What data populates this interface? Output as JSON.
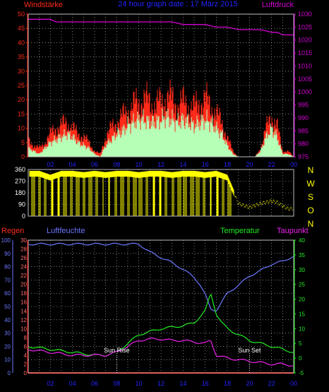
{
  "header": {
    "left_label": "Windstärke",
    "title": "24 hour graph date : 17 März 2015",
    "right_label": "Luftdruck"
  },
  "colors": {
    "background": "#000000",
    "wind": "#ff2a1a",
    "gust": "#ff0000",
    "wind_avg": "#b6ffb6",
    "pressure": "#d400d4",
    "direction": "#ffff00",
    "humidity": "#6b78ff",
    "temperature": "#22ee22",
    "dewpoint": "#ee22ee",
    "rain": "#ff0000",
    "sun_marker": "#ffffff",
    "grid": "#c8c8c8"
  },
  "chart_data": [
    {
      "type": "area",
      "title": "24 hour graph date : 17 März 2015",
      "left_axis": {
        "label": "Windstärke",
        "ticks": [
          "0",
          "5",
          "10",
          "15",
          "20",
          "25",
          "30",
          "35",
          "40",
          "45",
          "50"
        ],
        "range": [
          0,
          50
        ]
      },
      "right_axis": {
        "label": "Luftdruck",
        "ticks": [
          "975",
          "980",
          "985",
          "990",
          "995",
          "1000",
          "1005",
          "1010",
          "1015",
          "1020",
          "1025",
          "1030"
        ],
        "range": [
          975,
          1030
        ]
      },
      "x_ticks": [
        "02",
        "04",
        "06",
        "08",
        "10",
        "12",
        "14",
        "16",
        "18",
        "20",
        "22",
        "00"
      ],
      "x_range": [
        0,
        24
      ],
      "grid": true,
      "series": [
        {
          "name": "Windstärke",
          "x": [
            0,
            0.5,
            1,
            1.5,
            2,
            2.5,
            3,
            3.5,
            4,
            4.5,
            5,
            5.5,
            6,
            6.5,
            7,
            7.5,
            8,
            8.5,
            9,
            9.5,
            10,
            10.5,
            11,
            11.5,
            12,
            12.5,
            13,
            13.5,
            14,
            14.5,
            15,
            15.5,
            16,
            16.5,
            17,
            17.5,
            18,
            18.5,
            19,
            19.5,
            20,
            20.5,
            21,
            21.5,
            22,
            22.5,
            23,
            23.5,
            24
          ],
          "values": [
            6,
            4,
            3,
            5,
            8,
            10,
            11,
            12,
            10,
            8,
            7,
            5,
            2,
            1,
            7,
            10,
            12,
            14,
            16,
            18,
            19,
            20,
            19,
            18,
            19,
            21,
            20,
            18,
            19,
            18,
            17,
            19,
            20,
            18,
            15,
            12,
            7,
            2,
            0,
            0,
            0,
            0,
            3,
            10,
            14,
            11,
            2,
            2,
            0
          ]
        },
        {
          "name": "Mittelwind",
          "x": [
            0,
            0.5,
            1,
            1.5,
            2,
            2.5,
            3,
            3.5,
            4,
            4.5,
            5,
            5.5,
            6,
            6.5,
            7,
            7.5,
            8,
            8.5,
            9,
            9.5,
            10,
            10.5,
            11,
            11.5,
            12,
            12.5,
            13,
            13.5,
            14,
            14.5,
            15,
            15.5,
            16,
            16.5,
            17,
            17.5,
            18,
            18.5,
            19,
            19.5,
            20,
            20.5,
            21,
            21.5,
            22,
            22.5,
            23,
            23.5,
            24
          ],
          "values": [
            3,
            2,
            1,
            3,
            5,
            6,
            7,
            8,
            7,
            5,
            4,
            3,
            1,
            0,
            4,
            6,
            8,
            9,
            11,
            12,
            13,
            13,
            12,
            12,
            13,
            14,
            13,
            12,
            13,
            12,
            11,
            12,
            13,
            12,
            10,
            8,
            4,
            1,
            0,
            0,
            0,
            0,
            2,
            7,
            10,
            7,
            1,
            1,
            0
          ]
        },
        {
          "name": "Luftdruck",
          "x": [
            0,
            2,
            2.5,
            3,
            5,
            8,
            12,
            13,
            14,
            16,
            17,
            18,
            19,
            20,
            21,
            22,
            22.5,
            23,
            24
          ],
          "values": [
            1028,
            1028,
            1027,
            1027,
            1027,
            1027,
            1027,
            1027,
            1026,
            1026,
            1025,
            1025,
            1024,
            1024,
            1024,
            1023,
            1023,
            1022,
            1022
          ]
        }
      ]
    },
    {
      "type": "scatter",
      "right_axis_letters": [
        "N",
        "W",
        "S",
        "O",
        "N"
      ],
      "left_axis": {
        "ticks": [
          "0",
          "90",
          "180",
          "270",
          "360"
        ],
        "range": [
          0,
          360
        ]
      },
      "x_range": [
        0,
        24
      ],
      "grid": true,
      "series": [
        {
          "name": "Windrichtung",
          "x": [
            0,
            1,
            2,
            3,
            4,
            5,
            6,
            7,
            8,
            9,
            10,
            11,
            12,
            13,
            14,
            15,
            16,
            17,
            18,
            19,
            20,
            21,
            22,
            22.5,
            23,
            23.5,
            24
          ],
          "values": [
            330,
            330,
            300,
            330,
            330,
            320,
            330,
            320,
            330,
            330,
            320,
            330,
            330,
            320,
            330,
            330,
            320,
            330,
            300,
            100,
            70,
            100,
            120,
            110,
            80,
            60,
            60
          ]
        }
      ]
    },
    {
      "type": "line",
      "legend": [
        "Regen",
        "Luftfeuchte",
        "Temperatur",
        "Taupunkt"
      ],
      "axes": {
        "rain": {
          "label": "Regen",
          "ticks": [
            "0",
            "2",
            "4",
            "6",
            "8",
            "10",
            "12",
            "14",
            "16",
            "18",
            "20",
            "22",
            "24",
            "26",
            "28",
            "30"
          ],
          "range": [
            0,
            30
          ]
        },
        "humidity": {
          "label": "Luftfeuchte",
          "ticks": [
            "0",
            "10",
            "20",
            "30",
            "40",
            "50",
            "60",
            "70",
            "80",
            "90",
            "100"
          ],
          "range": [
            0,
            100
          ]
        },
        "temperature": {
          "label": "Temperatur",
          "ticks": [
            "-5",
            "0",
            "5",
            "10",
            "15",
            "20",
            "25",
            "30",
            "35",
            "40"
          ],
          "range": [
            -5,
            40
          ]
        }
      },
      "x_ticks": [
        "02",
        "04",
        "06",
        "08",
        "10",
        "12",
        "14",
        "16",
        "18",
        "20",
        "22",
        "00"
      ],
      "x_range": [
        0,
        24
      ],
      "annotations": [
        {
          "label": "Sun Rise",
          "x": 8
        },
        {
          "label": "Sun Set",
          "x": 20
        }
      ],
      "grid": true,
      "series": [
        {
          "name": "Luftfeuchte",
          "axis": "humidity",
          "x": [
            0,
            1,
            3,
            6,
            9,
            10,
            11,
            12,
            13,
            14,
            15,
            15.5,
            16,
            16.5,
            17,
            18,
            19,
            20,
            21,
            22,
            23,
            24
          ],
          "values": [
            97,
            97,
            97,
            97,
            97,
            97,
            91,
            87,
            83,
            78,
            72,
            67,
            59,
            48,
            47,
            60,
            66,
            73,
            77,
            82,
            84,
            88
          ]
        },
        {
          "name": "Temperatur",
          "axis": "temperature",
          "x": [
            0,
            1,
            2,
            3,
            4,
            5,
            6,
            7,
            8,
            9,
            10,
            11,
            12,
            13,
            14,
            15,
            16,
            16.5,
            17,
            17.5,
            18,
            19,
            20,
            21,
            22,
            23,
            24
          ],
          "values": [
            4,
            3.5,
            3,
            2.5,
            2,
            1.5,
            1,
            1,
            2,
            5,
            8,
            9,
            10,
            10.5,
            11,
            12,
            16,
            22,
            15,
            12,
            10,
            8,
            6,
            5,
            4,
            3,
            2
          ]
        },
        {
          "name": "Taupunkt",
          "axis": "temperature",
          "x": [
            0,
            1,
            2,
            3,
            4,
            5,
            6,
            7,
            8,
            9,
            10,
            11,
            12,
            13,
            14,
            15,
            16,
            16.5,
            17,
            18,
            19,
            20,
            21,
            22,
            23,
            24
          ],
          "values": [
            3,
            2.5,
            2,
            1.5,
            1,
            1,
            1,
            1,
            2,
            4,
            6,
            6.5,
            6.5,
            6,
            6,
            5.5,
            5,
            6,
            1,
            0,
            -0.5,
            -1,
            -1.5,
            -2,
            -2,
            -2.5
          ]
        },
        {
          "name": "Regen",
          "axis": "rain",
          "x": [
            0,
            24
          ],
          "values": [
            0,
            0
          ]
        }
      ]
    }
  ]
}
